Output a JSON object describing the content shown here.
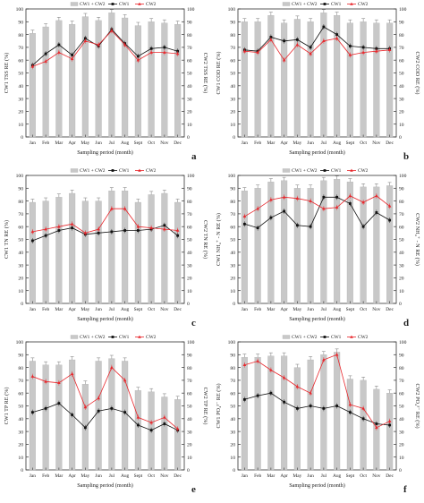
{
  "months": [
    "Jan",
    "Feb",
    "Mar",
    "Apr",
    "May",
    "Jun",
    "Jul",
    "Aug",
    "Sept",
    "Oct",
    "Nov",
    "Dec"
  ],
  "xlabel": "Sampling period (month)",
  "ticks": [
    "0",
    "10",
    "20",
    "30",
    "40",
    "50",
    "60",
    "70",
    "80",
    "90",
    "100"
  ],
  "colors": {
    "bar": "#c8c8c8",
    "cw1": "#111111",
    "cw2": "#e8262b"
  },
  "chart_data": [
    {
      "type": "bar",
      "panel_label": "a",
      "legend": [
        "CW1 + CW2",
        "CW1",
        "CW2"
      ],
      "ylabel_left": "CW1 TSS RE (%)",
      "ylabel_right": "CW2 TSS RE (%)",
      "ylim": [
        0,
        100
      ],
      "categories": [
        "Jan",
        "Feb",
        "Mar",
        "Apr",
        "May",
        "Jun",
        "Jul",
        "Aug",
        "Sept",
        "Oct",
        "Nov",
        "Dec"
      ],
      "series": [
        {
          "name": "CW1 + CW2",
          "kind": "bar",
          "values": [
            81,
            86,
            91,
            88,
            94,
            91,
            97,
            93,
            87,
            90,
            89,
            88
          ]
        },
        {
          "name": "CW1",
          "kind": "line",
          "values": [
            56,
            65,
            72,
            64,
            77,
            71,
            84,
            73,
            63,
            69,
            70,
            67
          ]
        },
        {
          "name": "CW2",
          "kind": "line",
          "values": [
            55,
            59,
            66,
            61,
            75,
            72,
            83,
            72,
            60,
            66,
            66,
            65
          ]
        }
      ]
    },
    {
      "type": "bar",
      "panel_label": "b",
      "legend": [
        "CW1 + CW2",
        "CW1",
        "CW2"
      ],
      "ylabel_left": "CW1 COD RE (%)",
      "ylabel_right": "CW2 COD RE (%)",
      "ylim": [
        0,
        100
      ],
      "categories": [
        "Jan",
        "Feb",
        "Mar",
        "Apr",
        "May",
        "Jun",
        "Jul",
        "Aug",
        "Sept",
        "Oct",
        "Nov",
        "Dec"
      ],
      "series": [
        {
          "name": "CW1 + CW2",
          "kind": "bar",
          "values": [
            90,
            90,
            95,
            89,
            92,
            90,
            97,
            95,
            89,
            90,
            89,
            89
          ]
        },
        {
          "name": "CW1",
          "kind": "line",
          "values": [
            68,
            67,
            78,
            75,
            76,
            70,
            86,
            80,
            71,
            70,
            69,
            69
          ]
        },
        {
          "name": "CW2",
          "kind": "line",
          "values": [
            67,
            66,
            76,
            60,
            72,
            65,
            75,
            77,
            64,
            66,
            67,
            68
          ]
        }
      ]
    },
    {
      "type": "bar",
      "panel_label": "c",
      "legend": [
        "CW1 + CW2",
        "CW1",
        "CW2"
      ],
      "ylabel_left": "CW1 TN RE (%)",
      "ylabel_right": "CW2 TN RE (%)",
      "ylim": [
        0,
        100
      ],
      "categories": [
        "Jan",
        "Feb",
        "Mar",
        "Apr",
        "May",
        "Jun",
        "Jul",
        "Aug",
        "Sept",
        "Oct",
        "Nov",
        "Dec"
      ],
      "series": [
        {
          "name": "CW1 + CW2",
          "kind": "bar",
          "values": [
            79,
            80,
            83,
            86,
            80,
            80,
            88,
            88,
            79,
            85,
            86,
            79
          ]
        },
        {
          "name": "CW1",
          "kind": "line",
          "values": [
            49,
            53,
            57,
            59,
            54,
            55,
            56,
            57,
            57,
            58,
            61,
            53
          ]
        },
        {
          "name": "CW2",
          "kind": "line",
          "values": [
            56,
            58,
            60,
            62,
            55,
            58,
            74,
            74,
            60,
            59,
            58,
            57
          ]
        }
      ]
    },
    {
      "type": "bar",
      "panel_label": "d",
      "legend": [
        "CW1 + CW2",
        "CW1",
        "CW2"
      ],
      "ylabel_left": "CW1 NH₄⁺ - N RE (%)",
      "ylabel_right": "CW2 NH₄⁺ - N RE (%)",
      "ylim": [
        0,
        100
      ],
      "categories": [
        "Jan",
        "Feb",
        "Mar",
        "Apr",
        "May",
        "Jun",
        "Jul",
        "Aug",
        "Sept",
        "Oct",
        "Nov",
        "Dec"
      ],
      "series": [
        {
          "name": "CW1 + CW2",
          "kind": "bar",
          "values": [
            88,
            90,
            95,
            96,
            90,
            90,
            96,
            97,
            95,
            91,
            91,
            92
          ]
        },
        {
          "name": "CW1",
          "kind": "line",
          "values": [
            62,
            59,
            67,
            72,
            61,
            60,
            83,
            83,
            78,
            60,
            71,
            65
          ]
        },
        {
          "name": "CW2",
          "kind": "line",
          "values": [
            68,
            74,
            81,
            83,
            82,
            80,
            74,
            75,
            84,
            79,
            84,
            76
          ]
        }
      ]
    },
    {
      "type": "bar",
      "panel_label": "e",
      "legend": [
        "CW1 + CW2",
        "CW1",
        "CW2"
      ],
      "ylabel_left": "CW1 TP RE (%)",
      "ylabel_right": "CW2 TP RE (%)",
      "ylim": [
        0,
        100
      ],
      "categories": [
        "Jan",
        "Feb",
        "Mar",
        "Apr",
        "May",
        "Jun",
        "Jul",
        "Aug",
        "Sept",
        "Oct",
        "Nov",
        "Dec"
      ],
      "series": [
        {
          "name": "CW1 + CW2",
          "kind": "bar",
          "values": [
            85,
            82,
            82,
            86,
            67,
            85,
            87,
            85,
            62,
            61,
            57,
            55
          ]
        },
        {
          "name": "CW1",
          "kind": "line",
          "values": [
            45,
            48,
            52,
            43,
            33,
            46,
            48,
            45,
            35,
            31,
            36,
            31
          ]
        },
        {
          "name": "CW2",
          "kind": "line",
          "values": [
            73,
            69,
            68,
            75,
            49,
            56,
            80,
            70,
            41,
            37,
            41,
            32
          ]
        }
      ]
    },
    {
      "type": "bar",
      "panel_label": "f",
      "legend": [
        "CW1 + CW2",
        "CW1",
        "CW2"
      ],
      "ylabel_left": "CW1 PO₄³⁻ RE (%)",
      "ylabel_right": "CW2 PO₄³⁻ RE (%)",
      "ylim": [
        0,
        100
      ],
      "categories": [
        "Jan",
        "Feb",
        "Mar",
        "Apr",
        "May",
        "Jun",
        "Jul",
        "Aug",
        "Sept",
        "Oct",
        "Nov",
        "Dec"
      ],
      "series": [
        {
          "name": "CW1 + CW2",
          "kind": "bar",
          "values": [
            88,
            88,
            89,
            89,
            80,
            86,
            90,
            92,
            71,
            70,
            63,
            60
          ]
        },
        {
          "name": "CW1",
          "kind": "line",
          "values": [
            55,
            58,
            60,
            53,
            48,
            50,
            48,
            50,
            45,
            40,
            36,
            35
          ]
        },
        {
          "name": "CW2",
          "kind": "line",
          "values": [
            82,
            85,
            78,
            72,
            65,
            60,
            86,
            90,
            51,
            48,
            33,
            38
          ]
        }
      ]
    }
  ]
}
